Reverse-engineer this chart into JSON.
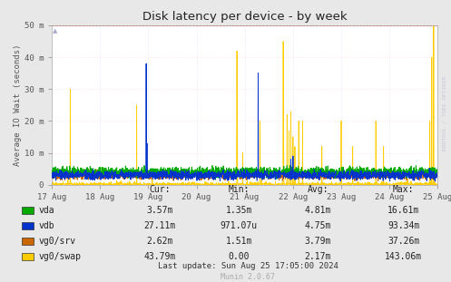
{
  "title": "Disk latency per device - by week",
  "ylabel": "Average IO Wait (seconds)",
  "background_color": "#e8e8e8",
  "plot_bg_color": "#ffffff",
  "grid_color_v": "#ddddff",
  "grid_color_h": "#ffdddd",
  "x_ticks_labels": [
    "17 Aug",
    "18 Aug",
    "19 Aug",
    "20 Aug",
    "21 Aug",
    "22 Aug",
    "23 Aug",
    "24 Aug",
    "25 Aug"
  ],
  "y_ticks_labels": [
    "0",
    "10 m",
    "20 m",
    "30 m",
    "40 m",
    "50 m"
  ],
  "y_ticks_values": [
    0,
    0.01,
    0.02,
    0.03,
    0.04,
    0.05
  ],
  "ylim": [
    0,
    0.05
  ],
  "series_vda": {
    "color": "#00aa00"
  },
  "series_vdb": {
    "color": "#0033cc"
  },
  "series_vg0srv": {
    "color": "#cc6600"
  },
  "series_vg0swap": {
    "color": "#ffcc00"
  },
  "legend_items": [
    {
      "label": "vda",
      "color": "#00aa00",
      "cur": "3.57m",
      "min": "1.35m",
      "avg": "4.81m",
      "max": "16.61m"
    },
    {
      "label": "vdb",
      "color": "#0033cc",
      "cur": "27.11m",
      "min": "971.07u",
      "avg": "4.75m",
      "max": "93.34m"
    },
    {
      "label": "vg0/srv",
      "color": "#cc6600",
      "cur": "2.62m",
      "min": "1.51m",
      "avg": "3.79m",
      "max": "37.26m"
    },
    {
      "label": "vg0/swap",
      "color": "#ffcc00",
      "cur": "43.79m",
      "min": "0.00",
      "avg": "2.17m",
      "max": "143.06m"
    }
  ],
  "last_update": "Last update: Sun Aug 25 17:05:00 2024",
  "munin_version": "Munin 2.0.67",
  "rrdtool_text": "RRDTOOL / TOBI OETIKER",
  "hrule_value": 0.05,
  "hrule_color": "#ff0000"
}
